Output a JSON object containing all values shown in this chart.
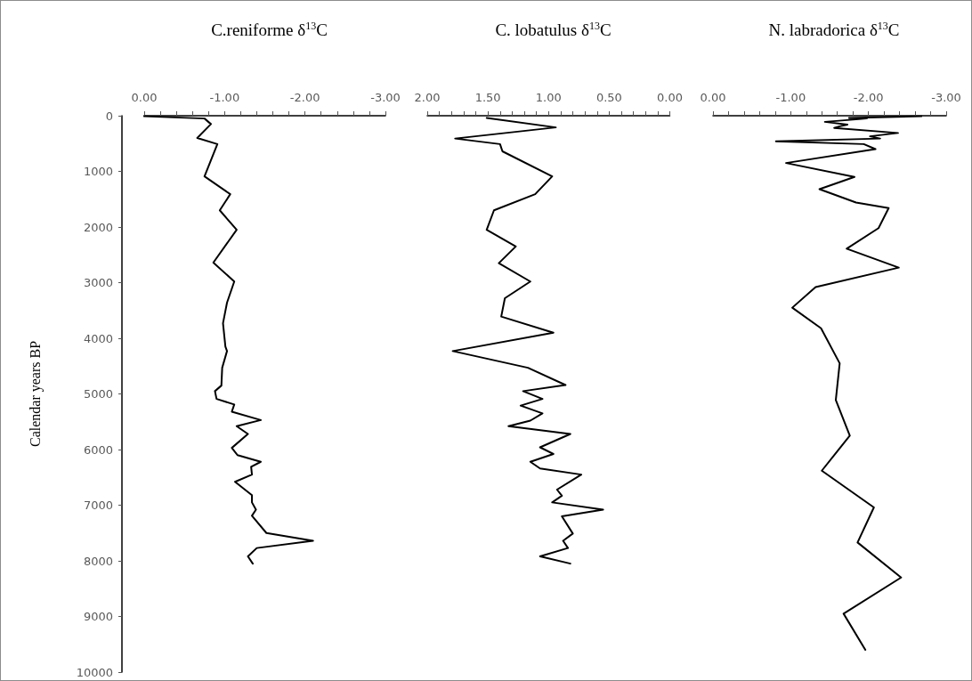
{
  "chart_data": [
    {
      "type": "line",
      "title": "C.reniforme δ$^{13}$C",
      "ylabel": "Calendar years BP",
      "marker": "none",
      "xlim": [
        0,
        -3
      ],
      "xticks": [
        {
          "value": 0,
          "label": "0.00"
        },
        {
          "value": -0.2,
          "label": null
        },
        {
          "value": -0.4,
          "label": null
        },
        {
          "value": -0.6,
          "label": null
        },
        {
          "value": -0.8,
          "label": null
        },
        {
          "value": -1,
          "label": "-1.00"
        },
        {
          "value": -1.2,
          "label": null
        },
        {
          "value": -1.4,
          "label": null
        },
        {
          "value": -1.6,
          "label": null
        },
        {
          "value": -1.8,
          "label": null
        },
        {
          "value": -2,
          "label": "-2.00"
        },
        {
          "value": -2.2,
          "label": null
        },
        {
          "value": -2.4,
          "label": null
        },
        {
          "value": -2.6,
          "label": null
        },
        {
          "value": -2.8,
          "label": null
        },
        {
          "value": -3,
          "label": "-3.00"
        }
      ],
      "ylim": [
        10000,
        0
      ],
      "yticks": [
        0,
        1000,
        2000,
        3000,
        4000,
        5000,
        6000,
        7000,
        8000,
        9000,
        10000
      ],
      "series": [
        {
          "color": "#000000",
          "x": [
            0,
            -0.75,
            -0.83,
            -0.66,
            -0.91,
            -0.75,
            -1.07,
            -0.94,
            -1.15,
            -0.86,
            -1.12,
            -1.03,
            -0.98,
            -1.01,
            -1.03,
            -0.97,
            -0.96,
            -0.88,
            -0.9,
            -1.12,
            -1.09,
            -1.45,
            -1.15,
            -1.29,
            -1.09,
            -1.16,
            -1.45,
            -1.33,
            -1.34,
            -1.13,
            -1.34,
            -1.34,
            -1.39,
            -1.34,
            -1.52,
            -2.1,
            -1.4,
            -1.29,
            -1.35
          ],
          "values": [
            10,
            50,
            150,
            400,
            510,
            1090,
            1410,
            1700,
            2050,
            2640,
            2980,
            3360,
            3730,
            4150,
            4230,
            4530,
            4850,
            4950,
            5090,
            5190,
            5320,
            5470,
            5580,
            5720,
            5970,
            6100,
            6220,
            6310,
            6450,
            6580,
            6820,
            6950,
            7080,
            7190,
            7500,
            7640,
            7770,
            7920,
            8050
          ]
        }
      ]
    },
    {
      "type": "line",
      "title": "C. lobatulus δ$^{13}$C",
      "marker": "none",
      "tick_labels": "x",
      "xlim": [
        2,
        0
      ],
      "xticks": [
        {
          "value": 2,
          "label": "2.00"
        },
        {
          "value": 1.9,
          "label": null
        },
        {
          "value": 1.8,
          "label": null
        },
        {
          "value": 1.7,
          "label": null
        },
        {
          "value": 1.6,
          "label": null
        },
        {
          "value": 1.5,
          "label": "1.50"
        },
        {
          "value": 1.4,
          "label": null
        },
        {
          "value": 1.3,
          "label": null
        },
        {
          "value": 1.2,
          "label": null
        },
        {
          "value": 1.1,
          "label": null
        },
        {
          "value": 1,
          "label": "1.00"
        },
        {
          "value": 0.9,
          "label": null
        },
        {
          "value": 0.8,
          "label": null
        },
        {
          "value": 0.7,
          "label": null
        },
        {
          "value": 0.6,
          "label": null
        },
        {
          "value": 0.5,
          "label": "0.50"
        },
        {
          "value": 0.4,
          "label": null
        },
        {
          "value": 0.3,
          "label": null
        },
        {
          "value": 0.2,
          "label": null
        },
        {
          "value": 0.1,
          "label": null
        },
        {
          "value": 0,
          "label": "0.00"
        }
      ],
      "ylim": [
        10000,
        0
      ],
      "series": [
        {
          "color": "#000000",
          "x": [
            1.51,
            0.94,
            1.77,
            1.4,
            1.38,
            0.97,
            1.11,
            1.45,
            1.51,
            1.27,
            1.41,
            1.15,
            1.36,
            1.39,
            0.96,
            1.79,
            1.17,
            0.86,
            1.21,
            1.05,
            1.23,
            1.05,
            1.15,
            1.33,
            0.82,
            1.07,
            0.96,
            1.15,
            1.07,
            0.73,
            0.93,
            0.89,
            0.97,
            0.55,
            0.89,
            0.8,
            0.88,
            0.84,
            1.07,
            0.82
          ],
          "values": [
            40,
            210,
            410,
            510,
            640,
            1090,
            1410,
            1700,
            2050,
            2350,
            2650,
            2980,
            3280,
            3610,
            3900,
            4230,
            4530,
            4840,
            4950,
            5090,
            5210,
            5350,
            5480,
            5580,
            5720,
            5960,
            6080,
            6220,
            6340,
            6450,
            6720,
            6830,
            6950,
            7080,
            7200,
            7510,
            7640,
            7770,
            7920,
            8050
          ]
        }
      ]
    },
    {
      "type": "line",
      "title": "N. labradorica δ$^{13}$C",
      "marker": "none",
      "tick_labels": "x",
      "xlim": [
        0,
        -3
      ],
      "xticks": [
        {
          "value": 0,
          "label": "0.00"
        },
        {
          "value": -0.2,
          "label": null
        },
        {
          "value": -0.4,
          "label": null
        },
        {
          "value": -0.6,
          "label": null
        },
        {
          "value": -0.8,
          "label": null
        },
        {
          "value": -1,
          "label": "-1.00"
        },
        {
          "value": -1.2,
          "label": null
        },
        {
          "value": -1.4,
          "label": null
        },
        {
          "value": -1.6,
          "label": null
        },
        {
          "value": -1.8,
          "label": null
        },
        {
          "value": -2,
          "label": "-2.00"
        },
        {
          "value": -2.2,
          "label": null
        },
        {
          "value": -2.4,
          "label": null
        },
        {
          "value": -2.6,
          "label": null
        },
        {
          "value": -2.8,
          "label": null
        },
        {
          "value": -3,
          "label": "-3.00"
        }
      ],
      "ylim": [
        10000,
        0
      ],
      "series": [
        {
          "color": "#000000",
          "x": [
            -2.68,
            -1.75,
            -1.98,
            -1.44,
            -1.73,
            -1.63,
            -1.56,
            -2.38,
            -2.02,
            -2.15,
            -0.81,
            -1.94,
            -2.09,
            -0.94,
            -1.82,
            -1.37,
            -1.84,
            -2.26,
            -2.13,
            -1.72,
            -2.39,
            -1.32,
            -1.02,
            -1.39,
            -1.63,
            -1.58,
            -1.76,
            -1.4,
            -2.07,
            -1.86,
            -2.42,
            -1.68,
            -1.96
          ],
          "values": [
            10,
            40,
            50,
            110,
            160,
            190,
            220,
            310,
            370,
            410,
            460,
            510,
            600,
            850,
            1100,
            1320,
            1560,
            1660,
            2020,
            2390,
            2730,
            3080,
            3450,
            3820,
            4450,
            5110,
            5750,
            6380,
            7040,
            7670,
            8300,
            8950,
            9600
          ]
        }
      ]
    }
  ]
}
